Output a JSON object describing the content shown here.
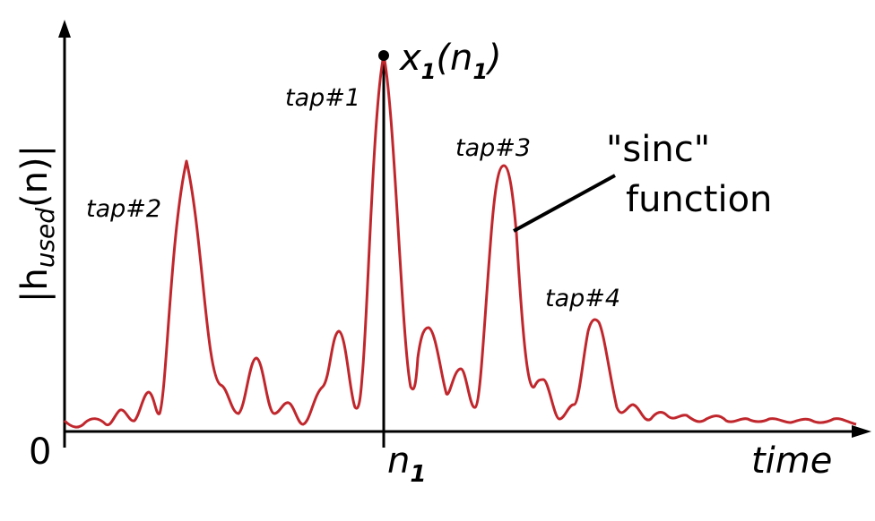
{
  "axes": {
    "y_label_main": "|h",
    "y_label_sub": "used",
    "y_label_tail": "(n)|",
    "origin": "0",
    "x_label": "time",
    "x_tick_main": "n",
    "x_tick_sub": "1"
  },
  "peak_label": {
    "main": "x",
    "sub1": "1",
    "open": "(n",
    "sub2": "1",
    "close": ")"
  },
  "taps": [
    "tap#1",
    "tap#2",
    "tap#3",
    "tap#4"
  ],
  "annotation": {
    "line1": "\"sinc\"",
    "line2": "function"
  },
  "colors": {
    "curve": "#c0272d",
    "axis": "#000000"
  }
}
